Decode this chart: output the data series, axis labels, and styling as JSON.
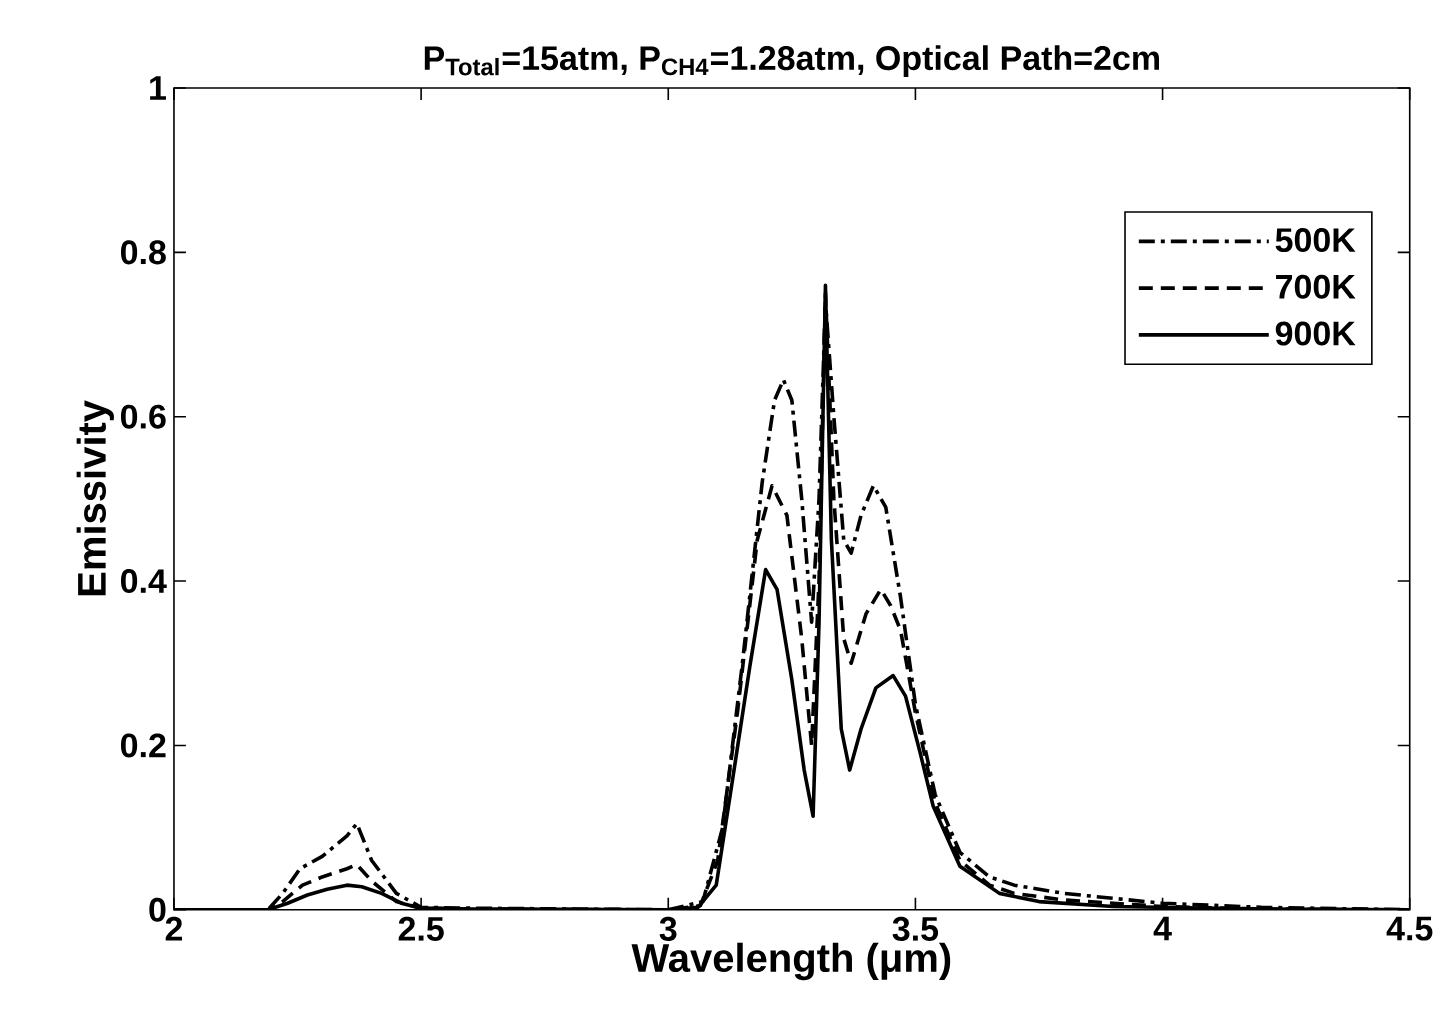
{
  "chart_data": {
    "type": "line",
    "title": "P$_{Total}$=15atm, P$_{CH4}$=1.28atm, Optical Path=2cm",
    "xlabel": "Wavelength (μm)",
    "ylabel": "Emissivity",
    "xlim": [
      2,
      4.5
    ],
    "ylim": [
      0,
      1
    ],
    "xticks": [
      2,
      2.5,
      3,
      3.5,
      4,
      4.5
    ],
    "yticks": [
      0,
      0.2,
      0.4,
      0.6,
      0.8,
      1
    ],
    "legend": "top right",
    "grid": false,
    "series": [
      {
        "name": "500K",
        "color": "#000000",
        "line_style": "dashdot",
        "x": [
          2.0,
          2.19,
          2.22,
          2.255,
          2.3,
          2.33,
          2.35,
          2.37,
          2.4,
          2.45,
          2.5,
          2.6,
          3.0,
          3.07,
          3.11,
          3.15,
          3.19,
          3.215,
          3.233,
          3.25,
          3.27,
          3.29,
          3.305,
          3.318,
          3.335,
          3.355,
          3.37,
          3.39,
          3.415,
          3.44,
          3.47,
          3.5,
          3.54,
          3.59,
          3.65,
          3.7,
          3.8,
          4.0,
          4.2,
          4.5
        ],
        "values": [
          0,
          0,
          0.02,
          0.05,
          0.065,
          0.08,
          0.09,
          0.105,
          0.06,
          0.02,
          0.003,
          0.002,
          0,
          0.01,
          0.1,
          0.3,
          0.52,
          0.62,
          0.645,
          0.62,
          0.5,
          0.35,
          0.5,
          0.74,
          0.6,
          0.45,
          0.434,
          0.48,
          0.516,
          0.49,
          0.38,
          0.25,
          0.14,
          0.07,
          0.04,
          0.03,
          0.02,
          0.008,
          0.003,
          0
        ]
      },
      {
        "name": "700K",
        "color": "#000000",
        "line_style": "dashed",
        "x": [
          2.0,
          2.19,
          2.22,
          2.26,
          2.3,
          2.35,
          2.37,
          2.4,
          2.45,
          2.5,
          2.6,
          3.0,
          3.065,
          3.1,
          3.14,
          3.18,
          3.21,
          3.24,
          3.27,
          3.29,
          3.305,
          3.318,
          3.335,
          3.355,
          3.37,
          3.4,
          3.43,
          3.45,
          3.47,
          3.5,
          3.54,
          3.59,
          3.65,
          3.7,
          3.8,
          4.0,
          4.2,
          4.5
        ],
        "values": [
          0,
          0,
          0.01,
          0.03,
          0.04,
          0.05,
          0.055,
          0.035,
          0.01,
          0.002,
          0.001,
          0,
          0.005,
          0.06,
          0.24,
          0.45,
          0.516,
          0.48,
          0.33,
          0.2,
          0.4,
          0.75,
          0.5,
          0.33,
          0.3,
          0.36,
          0.39,
          0.37,
          0.34,
          0.24,
          0.13,
          0.06,
          0.03,
          0.02,
          0.012,
          0.004,
          0.001,
          0
        ]
      },
      {
        "name": "900K",
        "color": "#000000",
        "line_style": "solid",
        "x": [
          2.0,
          2.19,
          2.23,
          2.27,
          2.31,
          2.35,
          2.38,
          2.42,
          2.46,
          2.5,
          2.6,
          3.0,
          3.06,
          3.097,
          3.13,
          3.165,
          3.197,
          3.22,
          3.25,
          3.275,
          3.293,
          3.305,
          3.318,
          3.33,
          3.35,
          3.367,
          3.39,
          3.42,
          3.455,
          3.48,
          3.51,
          3.536,
          3.59,
          3.67,
          3.75,
          3.9,
          4.2,
          4.5
        ],
        "values": [
          0,
          0,
          0.008,
          0.018,
          0.025,
          0.03,
          0.028,
          0.02,
          0.008,
          0.002,
          0.001,
          0,
          0.003,
          0.03,
          0.158,
          0.296,
          0.414,
          0.39,
          0.28,
          0.17,
          0.114,
          0.35,
          0.76,
          0.45,
          0.22,
          0.17,
          0.22,
          0.27,
          0.285,
          0.26,
          0.19,
          0.126,
          0.053,
          0.02,
          0.01,
          0.004,
          0.001,
          0
        ]
      }
    ]
  }
}
